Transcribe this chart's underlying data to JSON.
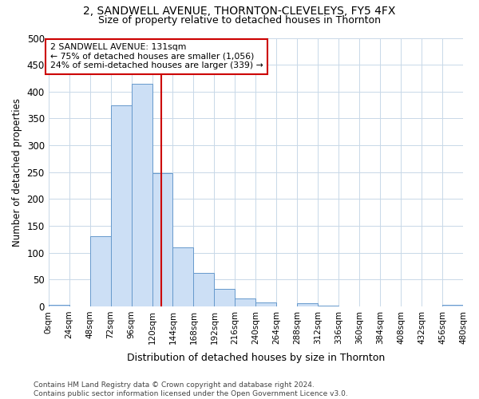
{
  "title": "2, SANDWELL AVENUE, THORNTON-CLEVELEYS, FY5 4FX",
  "subtitle": "Size of property relative to detached houses in Thornton",
  "xlabel": "Distribution of detached houses by size in Thornton",
  "ylabel": "Number of detached properties",
  "bar_edges": [
    0,
    24,
    48,
    72,
    96,
    120,
    144,
    168,
    192,
    216,
    240,
    264,
    288,
    312,
    336,
    360,
    384,
    408,
    432,
    456,
    480
  ],
  "bar_heights": [
    3,
    0,
    130,
    375,
    415,
    248,
    110,
    63,
    32,
    14,
    8,
    0,
    6,
    2,
    0,
    0,
    0,
    0,
    0,
    3
  ],
  "bar_color": "#ccdff5",
  "bar_edgecolor": "#6699cc",
  "vline_x": 131,
  "vline_color": "#cc0000",
  "annotation_text": "2 SANDWELL AVENUE: 131sqm\n← 75% of detached houses are smaller (1,056)\n24% of semi-detached houses are larger (339) →",
  "annotation_box_color": "#ffffff",
  "annotation_box_edgecolor": "#cc0000",
  "ylim": [
    0,
    500
  ],
  "yticks": [
    0,
    50,
    100,
    150,
    200,
    250,
    300,
    350,
    400,
    450,
    500
  ],
  "xtick_labels": [
    "0sqm",
    "24sqm",
    "48sqm",
    "72sqm",
    "96sqm",
    "120sqm",
    "144sqm",
    "168sqm",
    "192sqm",
    "216sqm",
    "240sqm",
    "264sqm",
    "288sqm",
    "312sqm",
    "336sqm",
    "360sqm",
    "384sqm",
    "408sqm",
    "432sqm",
    "456sqm",
    "480sqm"
  ],
  "footnote": "Contains HM Land Registry data © Crown copyright and database right 2024.\nContains public sector information licensed under the Open Government Licence v3.0.",
  "grid_color": "#c8d8e8",
  "background_color": "#ffffff",
  "title_fontsize": 10,
  "subtitle_fontsize": 9,
  "xlabel_fontsize": 9,
  "ylabel_fontsize": 8.5,
  "ytick_fontsize": 8.5,
  "xtick_fontsize": 7.5,
  "footnote_fontsize": 6.5
}
